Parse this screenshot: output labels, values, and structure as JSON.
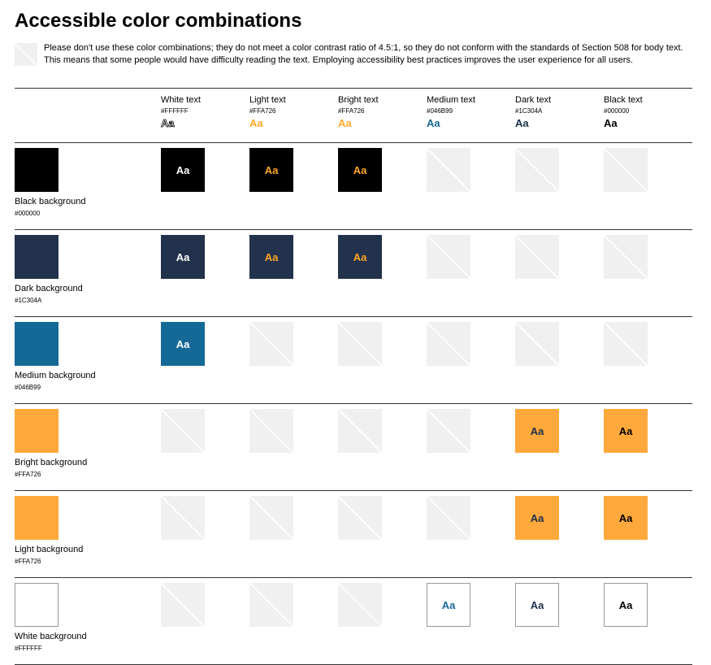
{
  "page": {
    "title": "Accessible color combinations",
    "note": "Please don't use these color combinations; they do not meet a color contrast ratio of 4.5:1, so they do not conform with the standards of Section 508 for body text. This means that some people would have difficulty reading the text. Employing accessibility best practices improves the user experience for all users."
  },
  "colors": {
    "fail_fill": "#F0F0F0",
    "fail_slash": "#FFFFFF",
    "rule": "#333333"
  },
  "sample": "Aa",
  "columns": [
    {
      "name": "White text",
      "hex": "#FFFFFF",
      "color": "#FFFFFF",
      "outline": true
    },
    {
      "name": "Light text",
      "hex": "#FFA726",
      "color": "#FFA726",
      "outline": false
    },
    {
      "name": "Bright text",
      "hex": "#FFA726",
      "color": "#FFA726",
      "outline": false
    },
    {
      "name": "Medium text",
      "hex": "#046B99",
      "color": "#1A6A96",
      "outline": false
    },
    {
      "name": "Dark text",
      "hex": "#1C304A",
      "color": "#1C304A",
      "outline": false
    },
    {
      "name": "Black text",
      "hex": "#000000",
      "color": "#000000",
      "outline": false
    }
  ],
  "rows": [
    {
      "name": "Black background",
      "hex": "#000000",
      "color": "#000000",
      "bordered": false,
      "accessible": [
        true,
        true,
        true,
        false,
        false,
        false
      ]
    },
    {
      "name": "Dark background",
      "hex": "#1C304A",
      "color": "#22324C",
      "bordered": false,
      "accessible": [
        true,
        true,
        true,
        false,
        false,
        false
      ]
    },
    {
      "name": "Medium background",
      "hex": "#046B99",
      "color": "#156996",
      "bordered": false,
      "accessible": [
        true,
        false,
        false,
        false,
        false,
        false
      ]
    },
    {
      "name": "Bright background",
      "hex": "#FFA726",
      "color": "#FFA93C",
      "bordered": false,
      "accessible": [
        false,
        false,
        false,
        false,
        true,
        true
      ]
    },
    {
      "name": "Light background",
      "hex": "#FFA726",
      "color": "#FFA93C",
      "bordered": false,
      "accessible": [
        false,
        false,
        false,
        false,
        true,
        true
      ]
    },
    {
      "name": "White background",
      "hex": "#FFFFFF",
      "color": "#FFFFFF",
      "bordered": true,
      "accessible": [
        false,
        false,
        false,
        true,
        true,
        true
      ]
    }
  ]
}
